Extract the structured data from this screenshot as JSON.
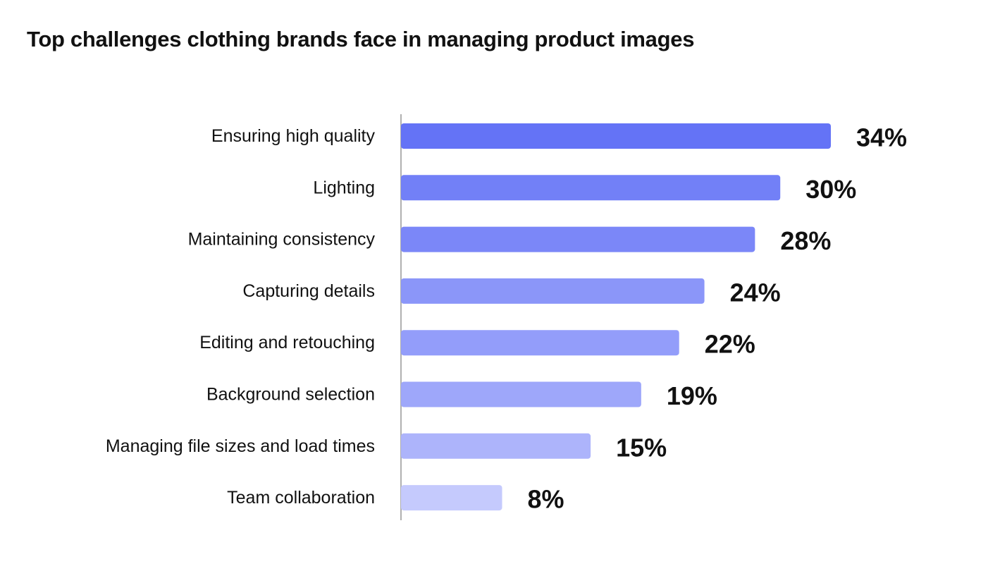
{
  "title": "Top challenges clothing brands face in managing product images",
  "chart_data": {
    "type": "bar",
    "orientation": "horizontal",
    "title": "Top challenges clothing brands face in managing product images",
    "categories": [
      "Ensuring high quality",
      "Lighting",
      "Maintaining consistency",
      "Capturing details",
      "Editing and retouching",
      "Background selection",
      "Managing file sizes and load times",
      "Team collaboration"
    ],
    "values": [
      34,
      30,
      28,
      24,
      22,
      19,
      15,
      8
    ],
    "value_labels": [
      "34%",
      "30%",
      "28%",
      "24%",
      "22%",
      "19%",
      "15%",
      "8%"
    ],
    "unit": "%",
    "bar_colors": [
      "#6473f6",
      "#7280f7",
      "#7b87f8",
      "#8b96f9",
      "#939dfa",
      "#9ea7fa",
      "#adb4fb",
      "#c5cafd"
    ],
    "axis_color": "#b0b0b0",
    "xlabel": "",
    "ylabel": "",
    "grid": false,
    "legend": "none"
  }
}
